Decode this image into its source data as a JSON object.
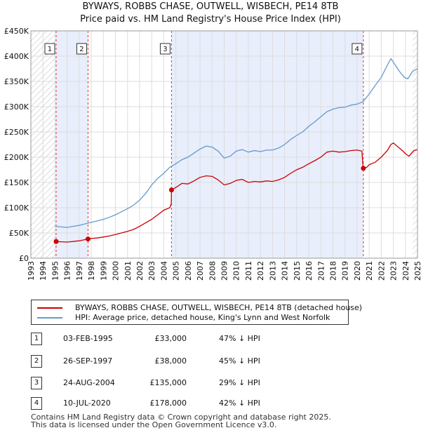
{
  "chart_data": {
    "type": "line",
    "title": "BYWAYS, ROBBS CHASE, OUTWELL, WISBECH, PE14 8TB",
    "subtitle": "Price paid vs. HM Land Registry's House Price Index (HPI)",
    "xlim": [
      1993,
      2025
    ],
    "ylim": [
      0,
      450000
    ],
    "x_ticks": [
      1993,
      1994,
      1995,
      1996,
      1997,
      1998,
      1999,
      2000,
      2001,
      2002,
      2003,
      2004,
      2005,
      2006,
      2007,
      2008,
      2009,
      2010,
      2011,
      2012,
      2013,
      2014,
      2015,
      2016,
      2017,
      2018,
      2019,
      2020,
      2021,
      2022,
      2023,
      2024,
      2025
    ],
    "y_ticks": [
      {
        "value": 0,
        "label": "£0"
      },
      {
        "value": 50000,
        "label": "£50K"
      },
      {
        "value": 100000,
        "label": "£100K"
      },
      {
        "value": 150000,
        "label": "£150K"
      },
      {
        "value": 200000,
        "label": "£200K"
      },
      {
        "value": 250000,
        "label": "£250K"
      },
      {
        "value": 300000,
        "label": "£300K"
      },
      {
        "value": 350000,
        "label": "£350K"
      },
      {
        "value": 400000,
        "label": "£400K"
      },
      {
        "value": 450000,
        "label": "£450K"
      }
    ],
    "series": [
      {
        "name": "BYWAYS, ROBBS CHASE, OUTWELL, WISBECH, PE14 8TB (detached house)",
        "color": "#cc0000",
        "points": [
          [
            1995.09,
            33000
          ],
          [
            1995.5,
            32500
          ],
          [
            1996.0,
            32000
          ],
          [
            1996.5,
            33000
          ],
          [
            1997.0,
            34500
          ],
          [
            1997.73,
            38000
          ],
          [
            1998.0,
            39000
          ],
          [
            1998.5,
            40000
          ],
          [
            1999.0,
            42000
          ],
          [
            1999.5,
            44000
          ],
          [
            2000.0,
            47000
          ],
          [
            2000.5,
            50000
          ],
          [
            2001.0,
            53000
          ],
          [
            2001.5,
            57000
          ],
          [
            2002.0,
            63000
          ],
          [
            2002.5,
            70000
          ],
          [
            2003.0,
            77000
          ],
          [
            2003.5,
            86000
          ],
          [
            2004.0,
            95000
          ],
          [
            2004.5,
            100000
          ],
          [
            2004.62,
            108000
          ],
          [
            2004.64,
            135000
          ],
          [
            2005.0,
            140000
          ],
          [
            2005.5,
            148000
          ],
          [
            2006.0,
            147000
          ],
          [
            2006.5,
            153000
          ],
          [
            2007.0,
            160000
          ],
          [
            2007.5,
            163000
          ],
          [
            2008.0,
            162000
          ],
          [
            2008.5,
            155000
          ],
          [
            2009.0,
            145000
          ],
          [
            2009.5,
            148000
          ],
          [
            2010.0,
            154000
          ],
          [
            2010.5,
            156000
          ],
          [
            2011.0,
            150000
          ],
          [
            2011.5,
            152000
          ],
          [
            2012.0,
            151000
          ],
          [
            2012.5,
            153000
          ],
          [
            2013.0,
            152000
          ],
          [
            2013.5,
            155000
          ],
          [
            2014.0,
            160000
          ],
          [
            2014.5,
            168000
          ],
          [
            2015.0,
            175000
          ],
          [
            2015.5,
            180000
          ],
          [
            2016.0,
            187000
          ],
          [
            2016.5,
            193000
          ],
          [
            2017.0,
            200000
          ],
          [
            2017.5,
            210000
          ],
          [
            2018.0,
            212000
          ],
          [
            2018.5,
            210000
          ],
          [
            2019.0,
            211000
          ],
          [
            2019.5,
            213000
          ],
          [
            2020.0,
            214000
          ],
          [
            2020.4,
            212000
          ],
          [
            2020.5,
            178000
          ],
          [
            2020.8,
            180000
          ],
          [
            2021.0,
            185000
          ],
          [
            2021.5,
            190000
          ],
          [
            2022.0,
            200000
          ],
          [
            2022.5,
            213000
          ],
          [
            2022.8,
            225000
          ],
          [
            2023.0,
            228000
          ],
          [
            2023.5,
            218000
          ],
          [
            2023.8,
            212000
          ],
          [
            2024.0,
            207000
          ],
          [
            2024.3,
            202000
          ],
          [
            2024.7,
            213000
          ],
          [
            2025.0,
            215000
          ]
        ]
      },
      {
        "name": "HPI: Average price, detached house, King's Lynn and West Norfolk",
        "color": "#6699cc",
        "points": [
          [
            1995.0,
            63000
          ],
          [
            1995.5,
            62000
          ],
          [
            1996.0,
            61000
          ],
          [
            1996.5,
            63000
          ],
          [
            1997.0,
            65000
          ],
          [
            1997.5,
            68000
          ],
          [
            1998.0,
            71000
          ],
          [
            1998.5,
            74000
          ],
          [
            1999.0,
            77000
          ],
          [
            1999.5,
            81000
          ],
          [
            2000.0,
            86000
          ],
          [
            2000.5,
            92000
          ],
          [
            2001.0,
            98000
          ],
          [
            2001.5,
            105000
          ],
          [
            2002.0,
            115000
          ],
          [
            2002.5,
            128000
          ],
          [
            2003.0,
            145000
          ],
          [
            2003.5,
            158000
          ],
          [
            2004.0,
            168000
          ],
          [
            2004.5,
            180000
          ],
          [
            2005.0,
            187000
          ],
          [
            2005.5,
            195000
          ],
          [
            2006.0,
            200000
          ],
          [
            2006.5,
            208000
          ],
          [
            2007.0,
            216000
          ],
          [
            2007.5,
            222000
          ],
          [
            2008.0,
            220000
          ],
          [
            2008.5,
            212000
          ],
          [
            2009.0,
            198000
          ],
          [
            2009.5,
            202000
          ],
          [
            2010.0,
            212000
          ],
          [
            2010.5,
            215000
          ],
          [
            2011.0,
            210000
          ],
          [
            2011.5,
            213000
          ],
          [
            2012.0,
            211000
          ],
          [
            2012.5,
            214000
          ],
          [
            2013.0,
            214000
          ],
          [
            2013.5,
            218000
          ],
          [
            2014.0,
            225000
          ],
          [
            2014.5,
            235000
          ],
          [
            2015.0,
            243000
          ],
          [
            2015.5,
            250000
          ],
          [
            2016.0,
            261000
          ],
          [
            2016.5,
            270000
          ],
          [
            2017.0,
            280000
          ],
          [
            2017.5,
            290000
          ],
          [
            2018.0,
            295000
          ],
          [
            2018.5,
            298000
          ],
          [
            2019.0,
            299000
          ],
          [
            2019.5,
            303000
          ],
          [
            2020.0,
            305000
          ],
          [
            2020.5,
            310000
          ],
          [
            2021.0,
            325000
          ],
          [
            2021.5,
            342000
          ],
          [
            2022.0,
            358000
          ],
          [
            2022.5,
            382000
          ],
          [
            2022.8,
            395000
          ],
          [
            2023.0,
            388000
          ],
          [
            2023.5,
            370000
          ],
          [
            2023.9,
            358000
          ],
          [
            2024.2,
            355000
          ],
          [
            2024.6,
            370000
          ],
          [
            2025.0,
            375000
          ]
        ]
      }
    ],
    "sales": [
      {
        "label": "1",
        "x": 1995.09,
        "price": 33000
      },
      {
        "label": "2",
        "x": 1997.73,
        "price": 38000
      },
      {
        "label": "3",
        "x": 2004.64,
        "price": 135000
      },
      {
        "label": "4",
        "x": 2020.52,
        "price": 178000
      }
    ],
    "shaded_ranges": [
      [
        1995.09,
        1997.73
      ],
      [
        2004.64,
        2020.52
      ]
    ],
    "hatch_before": 1995.09,
    "hatch_after": 2024.6
  },
  "table": [
    {
      "num": "1",
      "date": "03-FEB-1995",
      "price": "£33,000",
      "hpi": "47% ↓ HPI"
    },
    {
      "num": "2",
      "date": "26-SEP-1997",
      "price": "£38,000",
      "hpi": "45% ↓ HPI"
    },
    {
      "num": "3",
      "date": "24-AUG-2004",
      "price": "£135,000",
      "hpi": "29% ↓ HPI"
    },
    {
      "num": "4",
      "date": "10-JUL-2020",
      "price": "£178,000",
      "hpi": "42% ↓ HPI"
    }
  ],
  "footer": {
    "line1": "Contains HM Land Registry data © Crown copyright and database right 2025.",
    "line2": "This data is licensed under the Open Government Licence v3.0."
  }
}
